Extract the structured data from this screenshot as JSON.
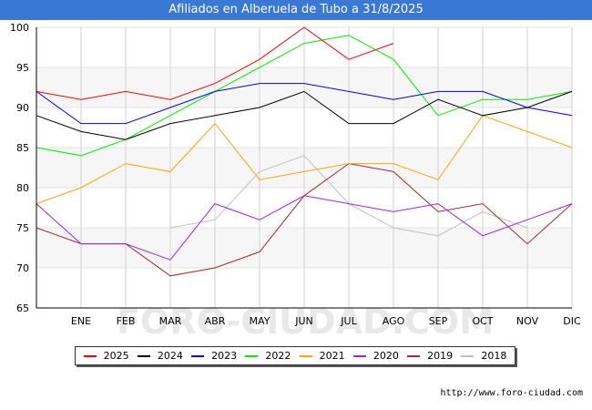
{
  "header": {
    "title": "Afiliados en Alberuela de Tubo a 31/8/2025"
  },
  "footer": {
    "source": "http://www.foro-ciudad.com"
  },
  "watermark": "FORO-CIUDAD.COM",
  "chart_data": {
    "type": "line",
    "title": "Afiliados en Alberuela de Tubo a 31/8/2025",
    "categories": [
      "",
      "ENE",
      "FEB",
      "MAR",
      "ABR",
      "MAY",
      "JUN",
      "JUL",
      "AGO",
      "SEP",
      "OCT",
      "NOV",
      "DIC"
    ],
    "ylim": [
      65,
      100
    ],
    "yticks": [
      65,
      70,
      75,
      80,
      85,
      90,
      95,
      100
    ],
    "grid": true,
    "legend_position": "bottom",
    "series": [
      {
        "name": "2025",
        "color": "#ff0000",
        "values": [
          92,
          91,
          92,
          91,
          93,
          96,
          100,
          96,
          98,
          null,
          null,
          null,
          null
        ]
      },
      {
        "name": "2024",
        "color": "#000000",
        "values": [
          89,
          87,
          86,
          88,
          89,
          90,
          92,
          88,
          88,
          91,
          89,
          90,
          92
        ]
      },
      {
        "name": "2023",
        "color": "#0000ff",
        "values": [
          92,
          88,
          88,
          90,
          92,
          93,
          93,
          92,
          91,
          92,
          92,
          90,
          89
        ]
      },
      {
        "name": "2022",
        "color": "#00ee00",
        "values": [
          85,
          84,
          86,
          89,
          92,
          95,
          98,
          99,
          96,
          89,
          91,
          91,
          92
        ]
      },
      {
        "name": "2021",
        "color": "#ffa500",
        "values": [
          78,
          80,
          83,
          82,
          88,
          81,
          82,
          83,
          83,
          81,
          89,
          87,
          85
        ]
      },
      {
        "name": "2020",
        "color": "#a020f0",
        "values": [
          78,
          73,
          73,
          71,
          78,
          76,
          79,
          78,
          77,
          78,
          74,
          76,
          78
        ]
      },
      {
        "name": "2019",
        "color": "#a52a2a",
        "values": [
          75,
          73,
          73,
          69,
          70,
          72,
          79,
          83,
          82,
          77,
          78,
          73,
          78
        ]
      },
      {
        "name": "2018",
        "color": "#c0c0c0",
        "values": [
          null,
          null,
          null,
          75,
          76,
          82,
          84,
          78,
          75,
          74,
          77,
          75,
          null
        ]
      }
    ]
  }
}
